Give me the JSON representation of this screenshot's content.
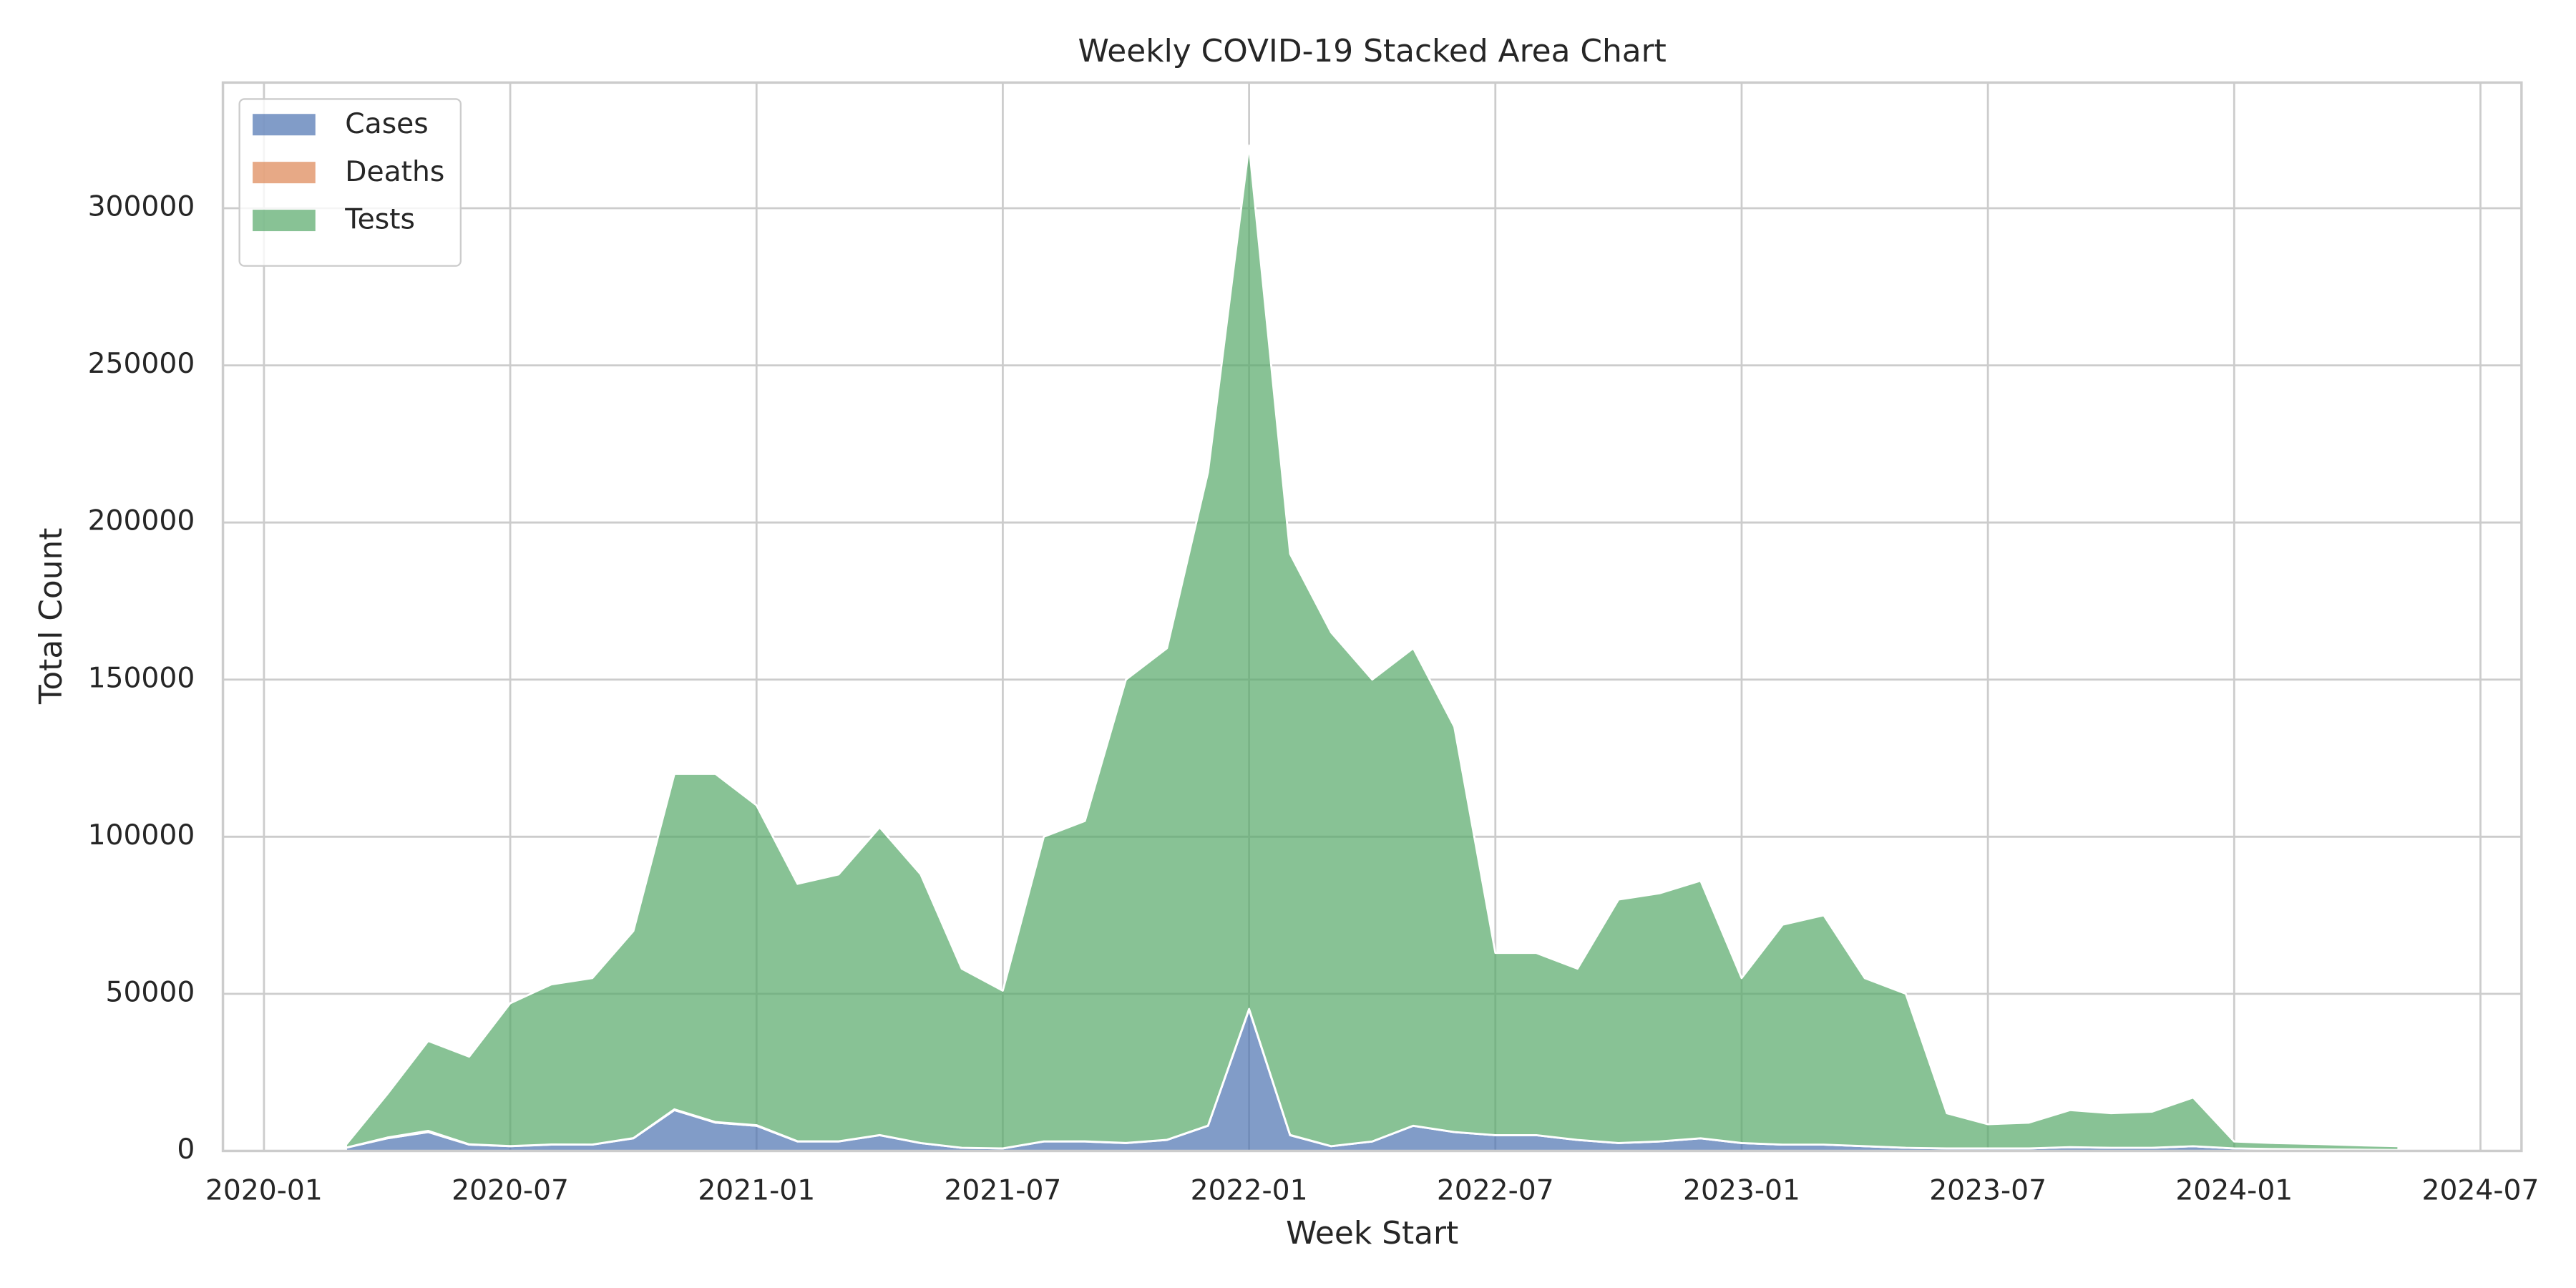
{
  "chart_data": {
    "type": "stacked_area",
    "title": "Weekly COVID-19 Stacked Area Chart",
    "x_label": "Week Start",
    "y_label": "Total Count",
    "x": [
      "2020-03",
      "2020-04",
      "2020-05",
      "2020-06",
      "2020-07",
      "2020-08",
      "2020-09",
      "2020-10",
      "2020-11",
      "2020-12",
      "2021-01",
      "2021-02",
      "2021-03",
      "2021-04",
      "2021-05",
      "2021-06",
      "2021-07",
      "2021-08",
      "2021-09",
      "2021-10",
      "2021-11",
      "2021-12",
      "2022-01",
      "2022-02",
      "2022-03",
      "2022-04",
      "2022-05",
      "2022-06",
      "2022-07",
      "2022-08",
      "2022-09",
      "2022-10",
      "2022-11",
      "2022-12",
      "2023-01",
      "2023-02",
      "2023-03",
      "2023-04",
      "2023-05",
      "2023-06",
      "2023-07",
      "2023-08",
      "2023-09",
      "2023-10",
      "2023-11",
      "2023-12",
      "2024-01",
      "2024-02",
      "2024-03",
      "2024-04",
      "2024-05"
    ],
    "series": [
      {
        "name": "Cases",
        "color": "#4c72b0",
        "values": [
          1000,
          4000,
          6000,
          2000,
          1500,
          2000,
          2000,
          4000,
          13000,
          9000,
          8000,
          3000,
          3000,
          5000,
          2500,
          1000,
          800,
          3000,
          3000,
          2500,
          3500,
          8000,
          45000,
          5000,
          1500,
          3000,
          8000,
          6000,
          5000,
          5000,
          3500,
          2500,
          3000,
          4000,
          2500,
          2000,
          2000,
          1500,
          1000,
          800,
          800,
          800,
          1200,
          1000,
          1000,
          1500,
          800,
          600,
          500,
          400,
          300
        ]
      },
      {
        "name": "Deaths",
        "color": "#dd8452",
        "values": [
          50,
          250,
          400,
          120,
          60,
          60,
          50,
          80,
          250,
          200,
          200,
          90,
          60,
          60,
          40,
          20,
          15,
          40,
          60,
          50,
          50,
          70,
          200,
          100,
          40,
          20,
          30,
          30,
          25,
          25,
          25,
          20,
          25,
          35,
          30,
          25,
          20,
          15,
          10,
          8,
          7,
          6,
          8,
          8,
          8,
          10,
          8,
          6,
          5,
          4,
          3
        ]
      },
      {
        "name": "Tests",
        "color": "#55a868",
        "values": [
          950,
          13750,
          28600,
          27880,
          45440,
          50940,
          52950,
          65920,
          106750,
          110800,
          101800,
          81910,
          84940,
          97940,
          85460,
          56980,
          50185,
          96960,
          101940,
          147450,
          156450,
          207930,
          274800,
          184900,
          163460,
          146980,
          151970,
          128970,
          57975,
          57975,
          54475,
          77480,
          78975,
          81965,
          52470,
          69975,
          72980,
          53485,
          48990,
          11192,
          7693,
          8194,
          11792,
          10992,
          11492,
          15490,
          2192,
          1894,
          1695,
          1396,
          1197
        ]
      }
    ],
    "xlim": [
      "2019-12",
      "2024-08"
    ],
    "xticks": [
      "2020-01",
      "2020-07",
      "2021-01",
      "2021-07",
      "2022-01",
      "2022-07",
      "2023-01",
      "2023-07",
      "2024-01",
      "2024-07"
    ],
    "ylim": [
      0,
      340000
    ],
    "yticks": [
      0,
      50000,
      100000,
      150000,
      200000,
      250000,
      300000
    ],
    "grid": true,
    "legend": "upper left"
  }
}
